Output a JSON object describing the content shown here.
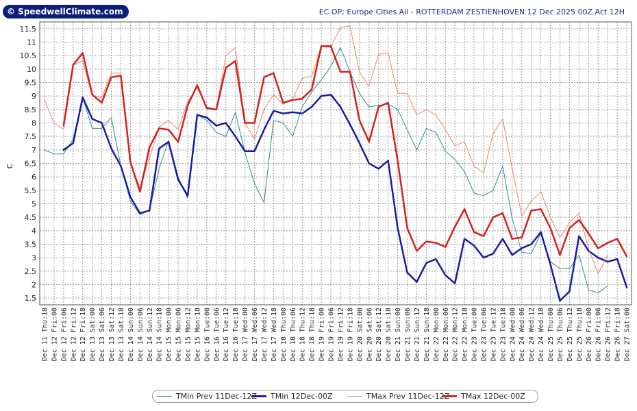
{
  "logo": {
    "text": "© SpeedwellClimate.com"
  },
  "title": "EC OP; Europe Cities All - ROTTERDAM ZESTIENHOVEN 12 Dec 2025 00Z Act 12H",
  "colors": {
    "tmin_prev": "#2e8b8b",
    "tmin": "#1a1aa8",
    "tmax_prev": "#e8866a",
    "tmax": "#d81e1e"
  },
  "chart_data": {
    "type": "line",
    "title": "EC OP; Europe Cities All - ROTTERDAM ZESTIENHOVEN 12 Dec 2025 00Z Act 12H",
    "xlabel": "",
    "ylabel": "C",
    "ylim": [
      1.25,
      11.75
    ],
    "yticks": [
      1.5,
      2,
      2.5,
      3,
      3.5,
      4,
      4.5,
      5,
      5.5,
      6,
      6.5,
      7,
      7.5,
      8,
      8.5,
      9,
      9.5,
      10,
      10.5,
      11,
      11.5
    ],
    "grid": true,
    "legend": "bottom",
    "categories": [
      "Dec 11 Thu:18",
      "Dec 12 Fri:00",
      "Dec 12 Fri:06",
      "Dec 12 Fri:12",
      "Dec 12 Fri:18",
      "Dec 13 Sat:00",
      "Dec 13 Sat:06",
      "Dec 13 Sat:12",
      "Dec 13 Sat:18",
      "Dec 14 Sun:00",
      "Dec 14 Sun:06",
      "Dec 14 Sun:12",
      "Dec 14 Sun:18",
      "Dec 15 Mon:00",
      "Dec 15 Mon:06",
      "Dec 15 Mon:12",
      "Dec 15 Mon:18",
      "Dec 16 Tue:00",
      "Dec 16 Tue:06",
      "Dec 16 Tue:12",
      "Dec 16 Tue:18",
      "Dec 17 Wed:00",
      "Dec 17 Wed:06",
      "Dec 17 Wed:12",
      "Dec 17 Wed:18",
      "Dec 18 Thu:00",
      "Dec 18 Thu:06",
      "Dec 18 Thu:12",
      "Dec 18 Thu:18",
      "Dec 19 Fri:00",
      "Dec 19 Fri:06",
      "Dec 19 Fri:12",
      "Dec 19 Fri:18",
      "Dec 20 Sat:00",
      "Dec 20 Sat:06",
      "Dec 20 Sat:12",
      "Dec 20 Sat:18",
      "Dec 21 Sun:00",
      "Dec 21 Sun:06",
      "Dec 21 Sun:12",
      "Dec 21 Sun:18",
      "Dec 22 Mon:00",
      "Dec 22 Mon:06",
      "Dec 22 Mon:12",
      "Dec 22 Mon:18",
      "Dec 23 Tue:00",
      "Dec 23 Tue:06",
      "Dec 23 Tue:12",
      "Dec 23 Tue:18",
      "Dec 24 Wed:00",
      "Dec 24 Wed:06",
      "Dec 24 Wed:12",
      "Dec 24 Wed:18",
      "Dec 25 Thu:00",
      "Dec 25 Thu:06",
      "Dec 25 Thu:12",
      "Dec 25 Thu:18",
      "Dec 26 Fri:00",
      "Dec 26 Fri:06",
      "Dec 26 Fri:12",
      "Dec 26 Fri:18",
      "Dec 27 Sat:00"
    ],
    "series": [
      {
        "name": "TMin Prev 11Dec-12Z",
        "key": "tmin_prev",
        "width": 1,
        "values": [
          7.0,
          6.85,
          6.85,
          7.4,
          8.95,
          7.8,
          7.8,
          8.2,
          6.4,
          5.1,
          4.6,
          4.75,
          6.3,
          7.35,
          6.0,
          5.2,
          8.3,
          8.1,
          7.65,
          7.5,
          8.4,
          6.9,
          5.75,
          5.05,
          8.1,
          8.0,
          7.5,
          8.6,
          9.15,
          9.6,
          10.1,
          10.8,
          9.9,
          9.1,
          8.6,
          8.65,
          8.7,
          8.5,
          7.75,
          7.0,
          7.8,
          7.65,
          6.95,
          6.65,
          6.2,
          5.4,
          5.3,
          5.5,
          6.4,
          4.45,
          3.2,
          3.15,
          3.9,
          2.85,
          2.6,
          2.6,
          3.1,
          1.8,
          1.7,
          1.95,
          null,
          null
        ]
      },
      {
        "name": "TMin 12Dec-00Z",
        "key": "tmin",
        "width": 2.5,
        "values": [
          null,
          null,
          7.0,
          7.25,
          8.95,
          8.15,
          8.0,
          7.05,
          6.4,
          5.25,
          4.65,
          4.75,
          7.05,
          7.3,
          5.9,
          5.3,
          8.3,
          8.2,
          7.9,
          8.0,
          7.5,
          6.95,
          6.95,
          7.75,
          8.45,
          8.35,
          8.4,
          8.35,
          8.6,
          9.0,
          9.05,
          8.6,
          7.95,
          7.25,
          6.5,
          6.3,
          6.6,
          4.1,
          2.45,
          2.1,
          2.8,
          2.95,
          2.35,
          2.05,
          3.7,
          3.45,
          3.0,
          3.15,
          3.7,
          3.1,
          3.35,
          3.5,
          3.95,
          2.75,
          1.4,
          1.75,
          3.8,
          3.25,
          3.0,
          2.85,
          2.95,
          1.9
        ]
      },
      {
        "name": "TMax Prev 11Dec-12Z",
        "key": "tmax_prev",
        "width": 1,
        "values": [
          8.85,
          8.0,
          7.75,
          10.15,
          10.3,
          9.0,
          8.95,
          9.85,
          9.85,
          6.5,
          5.6,
          6.7,
          7.85,
          8.1,
          7.75,
          8.8,
          9.3,
          8.6,
          8.5,
          10.5,
          10.8,
          8.0,
          7.4,
          8.5,
          9.05,
          8.7,
          8.9,
          9.65,
          9.75,
          10.85,
          10.8,
          11.55,
          11.6,
          9.9,
          9.35,
          10.55,
          10.6,
          9.1,
          9.1,
          8.3,
          8.5,
          8.3,
          7.75,
          7.15,
          7.3,
          6.4,
          6.15,
          7.6,
          8.15,
          6.3,
          4.55,
          5.1,
          5.45,
          4.5,
          3.75,
          4.3,
          4.65,
          3.35,
          2.4,
          3.1,
          null,
          null
        ]
      },
      {
        "name": "TMax 12Dec-00Z",
        "key": "tmax",
        "width": 2.5,
        "values": [
          null,
          null,
          7.9,
          10.15,
          10.6,
          9.05,
          8.75,
          9.7,
          9.75,
          6.55,
          5.45,
          7.1,
          7.8,
          7.75,
          7.3,
          8.65,
          9.4,
          8.55,
          8.5,
          10.05,
          10.3,
          8.0,
          8.0,
          9.7,
          9.85,
          8.75,
          8.85,
          8.9,
          9.25,
          10.85,
          10.85,
          9.9,
          9.9,
          8.1,
          7.3,
          8.6,
          8.75,
          6.6,
          4.1,
          3.25,
          3.6,
          3.55,
          3.4,
          4.15,
          4.8,
          3.95,
          3.8,
          4.5,
          4.65,
          3.7,
          3.75,
          4.75,
          4.8,
          4.1,
          3.1,
          4.1,
          4.4,
          3.9,
          3.35,
          3.55,
          3.7,
          3.05
        ]
      }
    ]
  }
}
